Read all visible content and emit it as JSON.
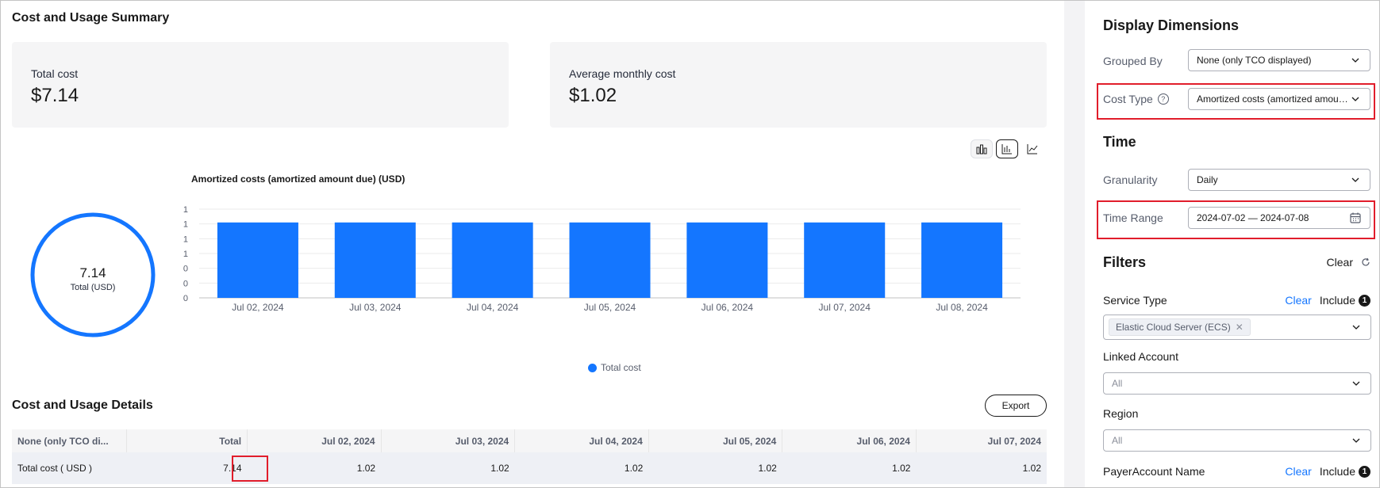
{
  "summary": {
    "title": "Cost and Usage Summary",
    "cards": [
      {
        "label": "Total cost",
        "value": "$7.14"
      },
      {
        "label": "Average monthly cost",
        "value": "$1.02"
      }
    ]
  },
  "donut": {
    "value": "7.14",
    "label": "Total (USD)"
  },
  "chart_data": {
    "type": "bar",
    "title": "Amortized costs (amortized amount due) (USD)",
    "categories": [
      "Jul 02, 2024",
      "Jul 03, 2024",
      "Jul 04, 2024",
      "Jul 05, 2024",
      "Jul 06, 2024",
      "Jul 07, 2024",
      "Jul 08, 2024"
    ],
    "series": [
      {
        "name": "Total cost",
        "values": [
          1.02,
          1.02,
          1.02,
          1.02,
          1.02,
          1.02,
          1.02
        ],
        "color": "#1476ff"
      }
    ],
    "y_tick_labels": [
      "0",
      "0",
      "0",
      "1",
      "1",
      "1",
      "1"
    ],
    "ylim": [
      0,
      1.2
    ],
    "grid": true,
    "legend": "bottom-center"
  },
  "details": {
    "title": "Cost and Usage Details",
    "export_label": "Export",
    "columns": [
      "None (only TCO di...",
      "Total",
      "Jul 02, 2024",
      "Jul 03, 2024",
      "Jul 04, 2024",
      "Jul 05, 2024",
      "Jul 06, 2024",
      "Jul 07, 2024"
    ],
    "rows": [
      [
        "Total cost ( USD )",
        "7.14",
        "1.02",
        "1.02",
        "1.02",
        "1.02",
        "1.02",
        "1.02"
      ]
    ]
  },
  "panel": {
    "display_title": "Display Dimensions",
    "grouped_by": {
      "label": "Grouped By",
      "value": "None (only TCO displayed)"
    },
    "cost_type": {
      "label": "Cost Type",
      "value": "Amortized costs (amortized amount due)"
    },
    "time_title": "Time",
    "granularity": {
      "label": "Granularity",
      "value": "Daily"
    },
    "time_range": {
      "label": "Time Range",
      "value": "2024-07-02 — 2024-07-08"
    },
    "filters_title": "Filters",
    "filters_clear": "Clear",
    "service_type": {
      "label": "Service Type",
      "clear": "Clear",
      "include": "Include",
      "count": "1",
      "tag": "Elastic Cloud Server (ECS)"
    },
    "linked_account": {
      "label": "Linked Account",
      "value": "All"
    },
    "region": {
      "label": "Region",
      "value": "All"
    },
    "payer_account": {
      "label": "PayerAccount Name",
      "clear": "Clear",
      "include": "Include",
      "count": "1"
    }
  },
  "icons": [
    "bar-chart-icon",
    "column-chart-icon",
    "line-chart-icon",
    "chevron-down-icon",
    "calendar-icon",
    "help-icon",
    "refresh-icon",
    "close-icon"
  ],
  "colors": {
    "accent": "#1476ff",
    "highlight": "#e11d2b"
  }
}
